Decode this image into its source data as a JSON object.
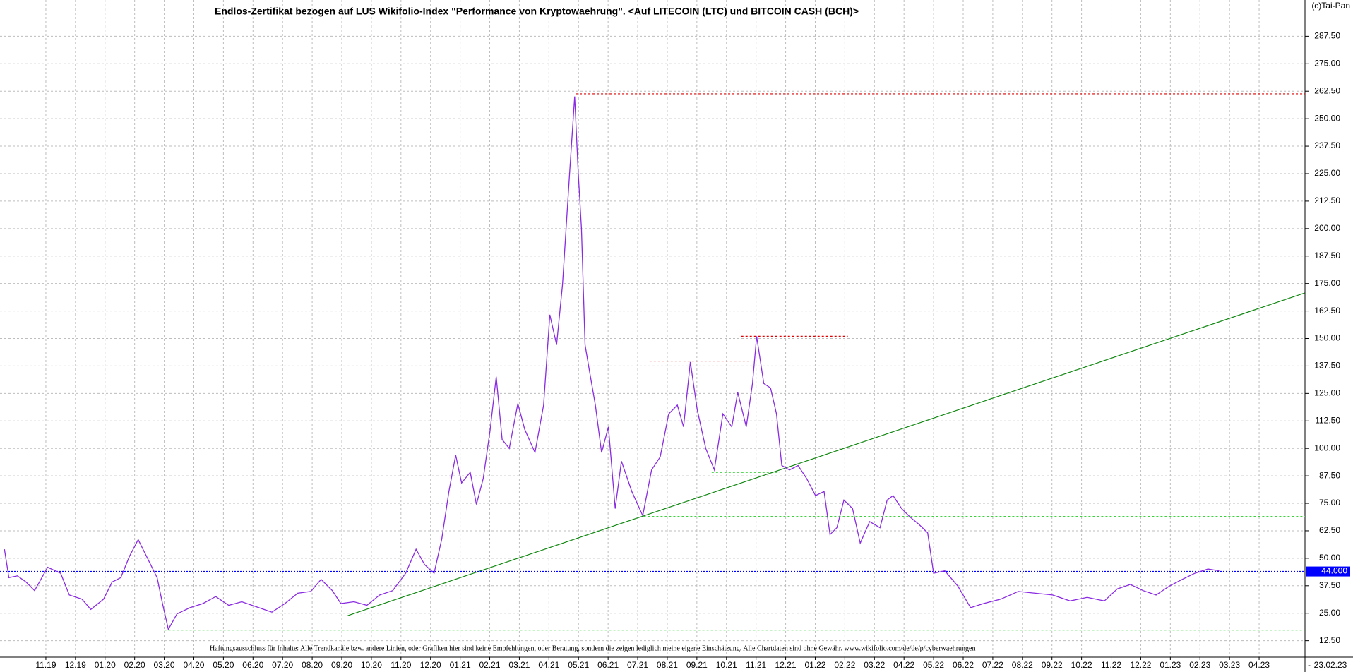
{
  "chart_data": {
    "type": "line",
    "title": "Endlos-Zertifikat bezogen auf LUS Wikifolio-Index \"Performance von Kryptowaehrung\". <Auf LITECOIN (LTC) und BITCOIN CASH (BCH)>",
    "copyright": "(c)Tai-Pan",
    "disclaimer": "Haftungsausschluss für Inhalte: Alle Trendkanäle bzw. andere Linien, oder Grafiken hier sind keine Empfehlungen, oder Beratung, sondern die zeigen lediglich meine eigene Einschätzung. Alle Chartdaten sind ohne Gewähr.  www.wikifolio.com/de/de/p/cyberwaehrungen",
    "current_date": "23.02.23",
    "axis_marker": "-",
    "grid": true,
    "xlim": [
      -1.55,
      42.55
    ],
    "ylim": [
      5,
      304
    ],
    "xticks": [
      {
        "value": 0,
        "label": "11.19"
      },
      {
        "value": 1,
        "label": "12.19"
      },
      {
        "value": 2,
        "label": "01.20"
      },
      {
        "value": 3,
        "label": "02.20"
      },
      {
        "value": 4,
        "label": "03.20"
      },
      {
        "value": 5,
        "label": "04.20"
      },
      {
        "value": 6,
        "label": "05.20"
      },
      {
        "value": 7,
        "label": "06.20"
      },
      {
        "value": 8,
        "label": "07.20"
      },
      {
        "value": 9,
        "label": "08.20"
      },
      {
        "value": 10,
        "label": "09.20"
      },
      {
        "value": 11,
        "label": "10.20"
      },
      {
        "value": 12,
        "label": "11.20"
      },
      {
        "value": 13,
        "label": "12.20"
      },
      {
        "value": 14,
        "label": "01.21"
      },
      {
        "value": 15,
        "label": "02.21"
      },
      {
        "value": 16,
        "label": "03.21"
      },
      {
        "value": 17,
        "label": "04.21"
      },
      {
        "value": 18,
        "label": "05.21"
      },
      {
        "value": 19,
        "label": "06.21"
      },
      {
        "value": 20,
        "label": "07.21"
      },
      {
        "value": 21,
        "label": "08.21"
      },
      {
        "value": 22,
        "label": "09.21"
      },
      {
        "value": 23,
        "label": "10.21"
      },
      {
        "value": 24,
        "label": "11.21"
      },
      {
        "value": 25,
        "label": "12.21"
      },
      {
        "value": 26,
        "label": "01.22"
      },
      {
        "value": 27,
        "label": "02.22"
      },
      {
        "value": 28,
        "label": "03.22"
      },
      {
        "value": 29,
        "label": "04.22"
      },
      {
        "value": 30,
        "label": "05.22"
      },
      {
        "value": 31,
        "label": "06.22"
      },
      {
        "value": 32,
        "label": "07.22"
      },
      {
        "value": 33,
        "label": "08.22"
      },
      {
        "value": 34,
        "label": "09.22"
      },
      {
        "value": 35,
        "label": "10.22"
      },
      {
        "value": 36,
        "label": "11.22"
      },
      {
        "value": 37,
        "label": "12.22"
      },
      {
        "value": 38,
        "label": "01.23"
      },
      {
        "value": 39,
        "label": "02.23"
      },
      {
        "value": 40,
        "label": "03.23"
      },
      {
        "value": 41,
        "label": "04.23"
      }
    ],
    "yticks": [
      {
        "value": 12.5,
        "label": "12.50"
      },
      {
        "value": 25,
        "label": "25.00"
      },
      {
        "value": 37.5,
        "label": "37.50"
      },
      {
        "value": 50,
        "label": "50.00"
      },
      {
        "value": 62.5,
        "label": "62.50"
      },
      {
        "value": 75,
        "label": "75.00"
      },
      {
        "value": 87.5,
        "label": "87.50"
      },
      {
        "value": 100,
        "label": "100.00"
      },
      {
        "value": 112.5,
        "label": "112.50"
      },
      {
        "value": 125,
        "label": "125.00"
      },
      {
        "value": 137.5,
        "label": "137.50"
      },
      {
        "value": 150,
        "label": "150.00"
      },
      {
        "value": 162.5,
        "label": "162.50"
      },
      {
        "value": 175,
        "label": "175.00"
      },
      {
        "value": 187.5,
        "label": "187.50"
      },
      {
        "value": 200,
        "label": "200.00"
      },
      {
        "value": 212.5,
        "label": "212.50"
      },
      {
        "value": 225,
        "label": "225.00"
      },
      {
        "value": 237.5,
        "label": "237.50"
      },
      {
        "value": 250,
        "label": "250.00"
      },
      {
        "value": 262.5,
        "label": "262.50"
      },
      {
        "value": 275,
        "label": "275.00"
      },
      {
        "value": 287.5,
        "label": "287.50"
      }
    ],
    "series": [
      {
        "color": "#8a2be2",
        "x": [
          -1.4,
          -1.25,
          -0.96,
          -0.67,
          -0.38,
          0.06,
          0.5,
          0.79,
          1.22,
          1.52,
          1.95,
          2.24,
          2.53,
          2.83,
          3.12,
          3.47,
          3.76,
          3.94,
          4.14,
          4.43,
          4.87,
          5.31,
          5.74,
          6.18,
          6.62,
          7.2,
          7.64,
          8.08,
          8.51,
          8.95,
          9.3,
          9.68,
          9.97,
          10.41,
          10.85,
          11.28,
          11.72,
          12.16,
          12.51,
          12.8,
          13.12,
          13.38,
          13.62,
          13.85,
          14.05,
          14.34,
          14.55,
          14.78,
          15.01,
          15.22,
          15.42,
          15.66,
          15.95,
          16.18,
          16.53,
          16.82,
          17.03,
          17.26,
          17.46,
          17.7,
          17.87,
          17.99,
          18.1,
          18.22,
          18.37,
          18.57,
          18.78,
          19.01,
          19.24,
          19.45,
          19.8,
          20.17,
          20.47,
          20.76,
          21.05,
          21.34,
          21.55,
          21.78,
          22.01,
          22.3,
          22.59,
          22.88,
          23.18,
          23.38,
          23.67,
          23.88,
          24.02,
          24.26,
          24.49,
          24.69,
          24.87,
          25.13,
          25.42,
          25.71,
          26.01,
          26.3,
          26.5,
          26.73,
          26.97,
          27.26,
          27.52,
          27.84,
          28.19,
          28.43,
          28.63,
          28.92,
          29.21,
          29.5,
          29.8,
          30.0,
          30.38,
          30.82,
          31.25,
          31.69,
          32.27,
          32.86,
          33.44,
          34.02,
          34.61,
          35.19,
          35.77,
          36.21,
          36.65,
          37.08,
          37.52,
          37.96,
          38.4,
          38.83,
          39.27,
          39.65
        ],
        "values": [
          54.1,
          41.2,
          42,
          39.2,
          35.3,
          45.9,
          43.2,
          33.3,
          31.4,
          26.7,
          31.4,
          39.2,
          41.2,
          51,
          58.5,
          49,
          41.2,
          29.4,
          17.7,
          24.7,
          27.5,
          29.4,
          32.6,
          28.6,
          30.2,
          27.5,
          25.5,
          29.4,
          34.1,
          34.9,
          40.4,
          35.3,
          29.4,
          30.2,
          28.6,
          33.3,
          35.3,
          43.2,
          54.1,
          47.1,
          43.2,
          58.8,
          80.4,
          96.9,
          84.3,
          89.1,
          74.5,
          86.3,
          107.9,
          132.6,
          104,
          100,
          120.4,
          108.7,
          98.1,
          119.7,
          160.8,
          147.1,
          174.6,
          225.6,
          260.1,
          225.6,
          200.1,
          147.1,
          135.3,
          119.7,
          98.1,
          109.8,
          72.6,
          94.2,
          80.4,
          69.4,
          90.2,
          96.1,
          115.7,
          119.7,
          109.8,
          139.3,
          117.7,
          100,
          90.2,
          115.7,
          109.8,
          125.5,
          109.8,
          129.5,
          151,
          129.5,
          127.5,
          115.7,
          92.2,
          90.2,
          92.2,
          86.3,
          78.5,
          80.4,
          60.8,
          63.9,
          76.5,
          72.6,
          56.9,
          66.7,
          63.9,
          76.5,
          78.5,
          72.6,
          68.7,
          65.5,
          61.6,
          43.2,
          44.3,
          37.3,
          27.5,
          29.4,
          31.4,
          34.9,
          34.1,
          33.3,
          30.6,
          32.2,
          30.6,
          36.1,
          38.1,
          35.3,
          33.3,
          37.3,
          40.4,
          43.2,
          45.1,
          44.3
        ]
      }
    ],
    "price_line": {
      "value": 44,
      "label": "44.000",
      "color": "#0000ff"
    },
    "lines": [
      {
        "color": "#e00000",
        "dashed": true,
        "x": [
          17.9,
          42.55
        ],
        "y": [
          261.3,
          261.3
        ]
      },
      {
        "color": "#e00000",
        "dashed": true,
        "x": [
          20.4,
          23.8
        ],
        "y": [
          139.7,
          139.7
        ]
      },
      {
        "color": "#e00000",
        "dashed": true,
        "x": [
          23.5,
          27.1
        ],
        "y": [
          151,
          151
        ]
      },
      {
        "color": "#22cc22",
        "dashed": true,
        "x": [
          4.0,
          42.55
        ],
        "y": [
          17.3,
          17.3
        ]
      },
      {
        "color": "#22cc22",
        "dashed": true,
        "x": [
          20.2,
          42.55
        ],
        "y": [
          69,
          69
        ]
      },
      {
        "color": "#22cc22",
        "dashed": true,
        "x": [
          22.5,
          24.8
        ],
        "y": [
          89.1,
          89.1
        ]
      },
      {
        "color": "#118811",
        "dashed": false,
        "x": [
          10.2,
          42.54
        ],
        "y": [
          23.9,
          170.7
        ]
      }
    ]
  }
}
